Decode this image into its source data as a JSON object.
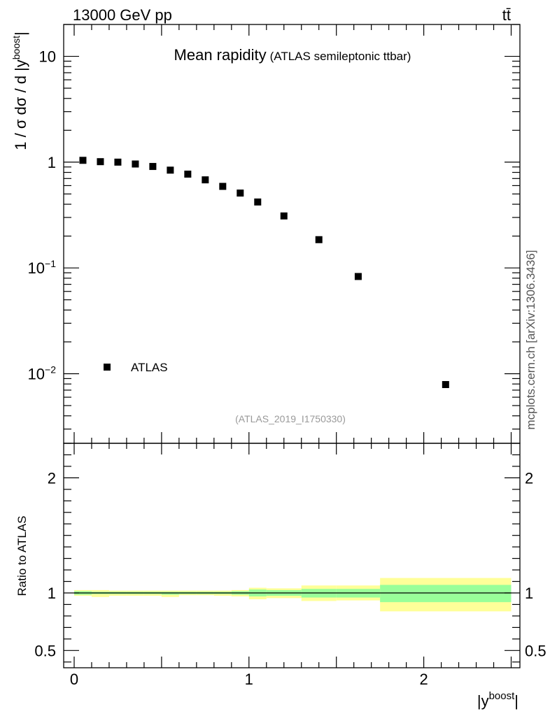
{
  "header": {
    "energy": "13000 GeV pp",
    "process": "tt̄"
  },
  "side_label": "mcplots.cern.ch [arXiv:1306.3436]",
  "chart_data": [
    {
      "type": "scatter",
      "panel": "main",
      "title": "Mean rapidity",
      "subtitle": "(ATLAS semileptonic ttbar)",
      "ylabel": "1 / σ dσ / d |y^boost|",
      "ylabel_parts": {
        "pre": "1 / σ dσ / d |y",
        "sup": "boost",
        "post": "|"
      },
      "yscale": "log",
      "ylim": [
        0.0022,
        20
      ],
      "xlim": [
        -0.06,
        2.55
      ],
      "y_ticks": [
        {
          "value": 10,
          "label": "10",
          "sup": ""
        },
        {
          "value": 1,
          "label": "1",
          "sup": ""
        },
        {
          "value": 0.1,
          "label": "10",
          "sup": "−1"
        },
        {
          "value": 0.01,
          "label": "10",
          "sup": "−2"
        }
      ],
      "legend": {
        "entry": "ATLAS",
        "placement": "bottom-left"
      },
      "annotation": "(ATLAS_2019_I1750330)",
      "series": [
        {
          "name": "ATLAS",
          "marker": "square",
          "color": "#000000",
          "points": [
            {
              "x": 0.05,
              "y": 1.04
            },
            {
              "x": 0.15,
              "y": 1.01
            },
            {
              "x": 0.25,
              "y": 1.0
            },
            {
              "x": 0.35,
              "y": 0.96
            },
            {
              "x": 0.45,
              "y": 0.91
            },
            {
              "x": 0.55,
              "y": 0.84
            },
            {
              "x": 0.65,
              "y": 0.77
            },
            {
              "x": 0.75,
              "y": 0.68
            },
            {
              "x": 0.85,
              "y": 0.59
            },
            {
              "x": 0.95,
              "y": 0.51
            },
            {
              "x": 1.05,
              "y": 0.42
            },
            {
              "x": 1.2,
              "y": 0.31
            },
            {
              "x": 1.4,
              "y": 0.185
            },
            {
              "x": 1.625,
              "y": 0.083
            },
            {
              "x": 2.125,
              "y": 0.0079
            }
          ]
        }
      ]
    },
    {
      "type": "area",
      "panel": "ratio",
      "ylabel": "Ratio to ATLAS",
      "xlabel": "|y^boost|",
      "xlabel_parts": {
        "pre": "|y",
        "sup": "boost",
        "post": "|"
      },
      "xlim": [
        -0.06,
        2.55
      ],
      "ylim": [
        0.35,
        2.3
      ],
      "x_ticks": [
        0,
        1,
        2
      ],
      "y_ticks": [
        0.5,
        1,
        2
      ],
      "reference_line": 1,
      "colors": {
        "inner_band": "#99ff99",
        "outer_band": "#ffff99",
        "line": "#000000"
      },
      "bins": [
        {
          "xlo": 0.0,
          "xhi": 0.1,
          "inner": [
            0.985,
            1.015
          ],
          "outer": [
            0.975,
            1.025
          ]
        },
        {
          "xlo": 0.1,
          "xhi": 0.2,
          "inner": [
            0.99,
            1.01
          ],
          "outer": [
            0.965,
            1.025
          ]
        },
        {
          "xlo": 0.2,
          "xhi": 0.3,
          "inner": [
            0.99,
            1.01
          ],
          "outer": [
            0.975,
            1.02
          ]
        },
        {
          "xlo": 0.3,
          "xhi": 0.4,
          "inner": [
            0.99,
            1.01
          ],
          "outer": [
            0.975,
            1.02
          ]
        },
        {
          "xlo": 0.4,
          "xhi": 0.5,
          "inner": [
            0.99,
            1.01
          ],
          "outer": [
            0.975,
            1.02
          ]
        },
        {
          "xlo": 0.5,
          "xhi": 0.6,
          "inner": [
            0.985,
            1.01
          ],
          "outer": [
            0.965,
            1.02
          ]
        },
        {
          "xlo": 0.6,
          "xhi": 0.7,
          "inner": [
            0.99,
            1.01
          ],
          "outer": [
            0.98,
            1.02
          ]
        },
        {
          "xlo": 0.7,
          "xhi": 0.8,
          "inner": [
            0.99,
            1.01
          ],
          "outer": [
            0.98,
            1.02
          ]
        },
        {
          "xlo": 0.8,
          "xhi": 0.9,
          "inner": [
            0.99,
            1.01
          ],
          "outer": [
            0.975,
            1.02
          ]
        },
        {
          "xlo": 0.9,
          "xhi": 1.0,
          "inner": [
            0.985,
            1.015
          ],
          "outer": [
            0.97,
            1.025
          ]
        },
        {
          "xlo": 1.0,
          "xhi": 1.1,
          "inner": [
            0.97,
            1.03
          ],
          "outer": [
            0.945,
            1.045
          ]
        },
        {
          "xlo": 1.1,
          "xhi": 1.3,
          "inner": [
            0.975,
            1.025
          ],
          "outer": [
            0.955,
            1.04
          ]
        },
        {
          "xlo": 1.3,
          "xhi": 1.5,
          "inner": [
            0.96,
            1.035
          ],
          "outer": [
            0.93,
            1.065
          ]
        },
        {
          "xlo": 1.5,
          "xhi": 1.75,
          "inner": [
            0.96,
            1.035
          ],
          "outer": [
            0.935,
            1.065
          ]
        },
        {
          "xlo": 1.75,
          "xhi": 2.5,
          "inner": [
            0.92,
            1.07
          ],
          "outer": [
            0.84,
            1.13
          ]
        }
      ]
    }
  ]
}
